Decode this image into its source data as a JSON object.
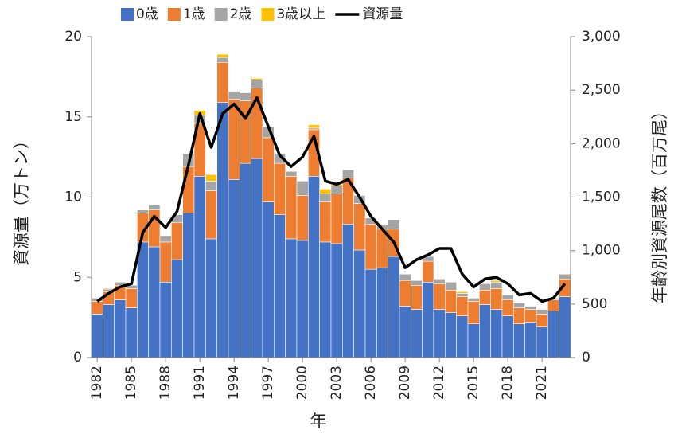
{
  "chart_data": {
    "type": "bar",
    "stacked": true,
    "x": [
      1982,
      1983,
      1984,
      1985,
      1986,
      1987,
      1988,
      1989,
      1990,
      1991,
      1992,
      1993,
      1994,
      1995,
      1996,
      1997,
      1998,
      1999,
      2000,
      2001,
      2002,
      2003,
      2004,
      2005,
      2006,
      2007,
      2008,
      2009,
      2010,
      2011,
      2012,
      2013,
      2014,
      2015,
      2016,
      2017,
      2018,
      2019,
      2020,
      2021,
      2022,
      2023
    ],
    "xlim": [
      1981.5,
      2023.5
    ],
    "xticks": [
      1982,
      1985,
      1988,
      1991,
      1994,
      1997,
      2000,
      2003,
      2006,
      2009,
      2012,
      2015,
      2018,
      2021
    ],
    "x_label": "年",
    "y_label": "資源量（万トン）",
    "y2_label": "年齢別資源尾数（百万尾）",
    "ylim": [
      0,
      20
    ],
    "yticks": [
      0,
      5,
      10,
      15,
      20
    ],
    "y2lim": [
      0,
      3000
    ],
    "y2ticks": [
      0,
      500,
      {
        "value": 1000,
        "label": "1,000"
      },
      {
        "value": 1500,
        "label": "1,500"
      },
      {
        "value": 2000,
        "label": "2,000"
      },
      {
        "value": 2500,
        "label": "2,500"
      },
      {
        "value": 3000,
        "label": "3,000"
      }
    ],
    "legend": "top",
    "series": [
      {
        "name": "0歳",
        "color": "#4472c4",
        "axis": "y2",
        "values": [
          405,
          495,
          540,
          465,
          1080,
          1035,
          705,
          915,
          1350,
          1695,
          1110,
          2385,
          1665,
          1815,
          1860,
          1455,
          1335,
          1110,
          1095,
          1695,
          1080,
          1065,
          1245,
          1005,
          825,
          840,
          945,
          480,
          450,
          705,
          450,
          420,
          390,
          315,
          495,
          450,
          390,
          315,
          330,
          285,
          435,
          570
        ]
      },
      {
        "name": "1歳",
        "color": "#ed7d31",
        "axis": "y2",
        "values": [
          120,
          120,
          135,
          180,
          270,
          345,
          375,
          345,
          435,
          495,
          450,
          375,
          750,
          585,
          660,
          600,
          480,
          585,
          420,
          435,
          375,
          465,
          435,
          435,
          420,
          360,
          255,
          240,
          225,
          195,
          240,
          210,
          180,
          210,
          135,
          195,
          150,
          150,
          120,
          120,
          105,
          165
        ]
      },
      {
        "name": "2歳",
        "color": "#a5a5a5",
        "axis": "y2",
        "values": [
          30,
          25,
          30,
          30,
          30,
          45,
          60,
          75,
          120,
          75,
          90,
          45,
          75,
          75,
          75,
          105,
          90,
          45,
          135,
          15,
          75,
          75,
          75,
          75,
          60,
          45,
          90,
          60,
          45,
          45,
          45,
          75,
          30,
          30,
          60,
          60,
          45,
          45,
          30,
          45,
          15,
          45
        ]
      },
      {
        "name": "3歳以上",
        "color": "#ffc000",
        "axis": "y2",
        "values": [
          0,
          8,
          0,
          0,
          0,
          0,
          0,
          0,
          0,
          45,
          60,
          30,
          0,
          0,
          15,
          0,
          0,
          0,
          0,
          30,
          45,
          15,
          0,
          0,
          0,
          0,
          0,
          0,
          0,
          0,
          0,
          0,
          15,
          0,
          0,
          15,
          0,
          0,
          0,
          0,
          0,
          0
        ]
      },
      {
        "name": "資源量",
        "color": "#000000",
        "type": "line",
        "values": [
          3.5,
          4.0,
          4.4,
          4.6,
          7.8,
          8.8,
          8.1,
          9.1,
          12.0,
          15.2,
          13.1,
          15.2,
          15.8,
          14.9,
          16.2,
          14.4,
          12.6,
          11.9,
          12.5,
          13.8,
          11.0,
          10.8,
          11.1,
          10.0,
          8.8,
          8.0,
          7.2,
          5.6,
          6.1,
          6.4,
          6.8,
          6.8,
          5.2,
          4.4,
          4.9,
          5.0,
          4.6,
          3.9,
          4.0,
          3.5,
          3.7,
          4.6
        ]
      }
    ]
  }
}
